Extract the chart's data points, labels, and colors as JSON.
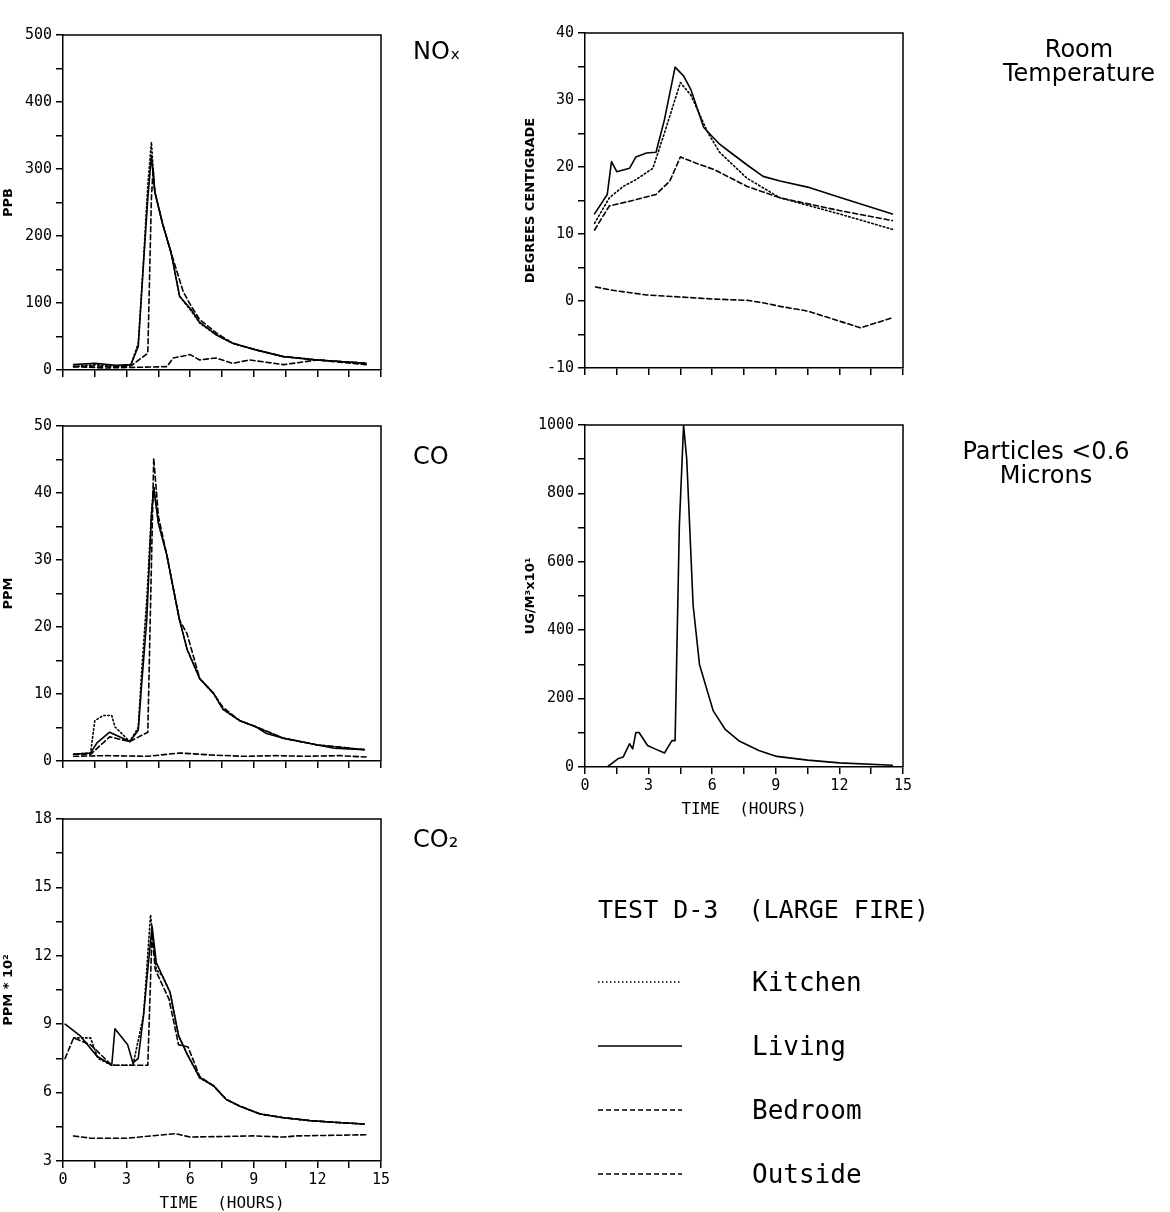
{
  "chart_data": [
    {
      "type": "line",
      "annotations": [
        "NOₓ"
      ],
      "ylabel": "PPB",
      "xlim": [
        0,
        15
      ],
      "xticks": [
        0,
        {
          "value": 1.5,
          "label": null
        },
        3,
        {
          "value": 4.5,
          "label": null
        },
        6,
        {
          "value": 7.5,
          "label": null
        },
        9,
        {
          "value": 10.5,
          "label": null
        },
        12,
        {
          "value": 13.5,
          "label": null
        },
        15
      ],
      "ylim": [
        0,
        500
      ],
      "yticks": [
        0,
        {
          "value": 50,
          "label": null
        },
        100,
        {
          "value": 150,
          "label": null
        },
        200,
        {
          "value": 250,
          "label": null
        },
        300,
        {
          "value": 350,
          "label": null
        },
        400,
        {
          "value": 450,
          "label": null
        },
        500
      ],
      "tick_labels": "y",
      "marker": "none",
      "legend": false,
      "series": [
        {
          "color": "#000000",
          "line_style": "dotted",
          "x": [
            0.5,
            1.5,
            2.5,
            3.2,
            3.55,
            3.8,
            4.0,
            4.17,
            4.33,
            4.7,
            5.1,
            5.5,
            6.05,
            6.45,
            7.25,
            8.0,
            9.1,
            10.4,
            12.0,
            14.3
          ],
          "values": [
            5,
            8,
            6,
            7,
            40,
            165,
            276,
            340,
            266,
            218,
            175,
            110,
            88,
            70,
            52,
            40,
            30,
            20,
            15,
            10
          ]
        },
        {
          "color": "#000000",
          "line_style": "solid",
          "x": [
            0.5,
            1.5,
            2.5,
            3.2,
            3.55,
            3.8,
            4.0,
            4.17,
            4.33,
            4.7,
            5.1,
            5.5,
            6.05,
            6.45,
            7.25,
            8.0,
            9.1,
            10.4,
            12.0,
            14.3
          ],
          "values": [
            8,
            10,
            7,
            8,
            35,
            160,
            256,
            320,
            266,
            218,
            175,
            110,
            90,
            71,
            52,
            40,
            30,
            20,
            15,
            10
          ]
        },
        {
          "color": "#000000",
          "line_style": "dashed",
          "x": [
            0.5,
            1.5,
            2.5,
            3.2,
            4.0,
            4.17,
            4.25,
            4.33,
            4.7,
            5.1,
            5.67,
            6.05,
            6.45,
            7.25,
            8.0,
            9.1,
            10.4,
            12.0,
            14.3
          ],
          "values": [
            5,
            6,
            5,
            6,
            25,
            256,
            300,
            266,
            218,
            175,
            117,
            95,
            75,
            55,
            40,
            30,
            20,
            15,
            10
          ]
        },
        {
          "color": "#000000",
          "line_style": "dashed",
          "x": [
            0.5,
            2,
            3.5,
            4.9,
            5.2,
            6.0,
            6.45,
            7.2,
            8.0,
            8.8,
            10.4,
            12.0,
            14.3
          ],
          "values": [
            5,
            3,
            4,
            5,
            18,
            23,
            15,
            18,
            10,
            15,
            8,
            15,
            8
          ]
        }
      ]
    },
    {
      "type": "line",
      "annotations": [
        "Room Temperature"
      ],
      "ylabel": "DEGREES CENTIGRADE",
      "xlim": [
        0,
        15
      ],
      "xticks": [
        0,
        {
          "value": 1.5,
          "label": null
        },
        3,
        {
          "value": 4.5,
          "label": null
        },
        6,
        {
          "value": 7.5,
          "label": null
        },
        9,
        {
          "value": 10.5,
          "label": null
        },
        12,
        {
          "value": 13.5,
          "label": null
        },
        15
      ],
      "ylim": [
        -10,
        40
      ],
      "yticks": [
        -10,
        {
          "value": -5,
          "label": null
        },
        0,
        {
          "value": 5,
          "label": null
        },
        10,
        {
          "value": 15,
          "label": null
        },
        20,
        {
          "value": 25,
          "label": null
        },
        30,
        {
          "value": 35,
          "label": null
        },
        40
      ],
      "tick_labels": "y",
      "marker": "none",
      "legend": false,
      "series": [
        {
          "color": "#000000",
          "line_style": "dotted",
          "x": [
            0.45,
            1.15,
            1.8,
            2.4,
            3.2,
            3.75,
            4.5,
            5.0,
            5.8,
            6.35,
            7.65,
            9.2,
            12.0,
            14.5
          ],
          "values": [
            11.6,
            15.4,
            17.1,
            18.1,
            19.8,
            25.1,
            32.6,
            30.7,
            25.1,
            22.2,
            18.3,
            15.4,
            13,
            10.7
          ]
        },
        {
          "color": "#000000",
          "line_style": "solid",
          "x": [
            0.45,
            1.05,
            1.25,
            1.5,
            2.1,
            2.4,
            2.9,
            3.35,
            3.75,
            4.25,
            4.65,
            5.0,
            5.6,
            6.35,
            6.85,
            7.65,
            8.4,
            9.2,
            10.5,
            12.0,
            14.5
          ],
          "values": [
            13,
            15.9,
            20.8,
            19.3,
            19.8,
            21.5,
            22.1,
            22.2,
            27.1,
            34.9,
            33.6,
            31.5,
            25.9,
            23.4,
            22.2,
            20.3,
            18.6,
            17.9,
            17,
            15.5,
            13
          ]
        },
        {
          "color": "#000000",
          "line_style": "dashed",
          "x": [
            0.45,
            1.15,
            2.25,
            3.35,
            4.0,
            4.5,
            5.3,
            6.1,
            7.65,
            9.2,
            12.0,
            14.5
          ],
          "values": [
            10.6,
            14.2,
            15,
            15.9,
            17.9,
            21.5,
            20.5,
            19.6,
            17.1,
            15.4,
            13.5,
            12
          ]
        },
        {
          "color": "#000000",
          "line_style": "dashed",
          "x": [
            0.5,
            1.3,
            2.9,
            4.5,
            6.0,
            7.65,
            8.45,
            9.2,
            10.5,
            12.0,
            13.0,
            14.5
          ],
          "values": [
            2.1,
            1.6,
            0.9,
            0.6,
            0.3,
            0.1,
            -0.3,
            -0.8,
            -1.5,
            -3,
            -4,
            -2.5
          ]
        }
      ]
    },
    {
      "type": "line",
      "annotations": [
        "CO"
      ],
      "ylabel": "PPM",
      "xlim": [
        0,
        15
      ],
      "xticks": [
        0,
        {
          "value": 1.5,
          "label": null
        },
        3,
        {
          "value": 4.5,
          "label": null
        },
        6,
        {
          "value": 7.5,
          "label": null
        },
        9,
        {
          "value": 10.5,
          "label": null
        },
        12,
        {
          "value": 13.5,
          "label": null
        },
        15
      ],
      "ylim": [
        0,
        50
      ],
      "yticks": [
        0,
        {
          "value": 5,
          "label": null
        },
        10,
        {
          "value": 15,
          "label": null
        },
        20,
        {
          "value": 25,
          "label": null
        },
        30,
        {
          "value": 35,
          "label": null
        },
        40,
        {
          "value": 45,
          "label": null
        },
        50
      ],
      "tick_labels": "y",
      "marker": "none",
      "legend": false,
      "series": [
        {
          "color": "#000000",
          "line_style": "dotted",
          "x": [
            0.5,
            1.3,
            1.5,
            1.9,
            2.3,
            2.45,
            3.15,
            3.55,
            3.7,
            3.95,
            4.17,
            4.28,
            4.5,
            4.9,
            5.2,
            5.5,
            5.85,
            6.45,
            7.1,
            7.55,
            8.35,
            9.1,
            10.4,
            12.0,
            14.2
          ],
          "values": [
            1,
            1.2,
            6,
            6.8,
            6.8,
            5.1,
            2.9,
            5,
            13,
            24,
            37,
            41,
            35.5,
            30.7,
            25.8,
            21,
            16.7,
            12.3,
            10.1,
            7.7,
            6,
            5.1,
            3.4,
            2.4,
            1.7
          ]
        },
        {
          "color": "#000000",
          "line_style": "solid",
          "x": [
            0.5,
            1.3,
            1.6,
            2.2,
            3.15,
            3.55,
            3.7,
            3.95,
            4.17,
            4.28,
            4.5,
            4.9,
            5.2,
            5.5,
            5.85,
            6.45,
            7.1,
            7.55,
            8.35,
            9.1,
            9.6,
            10.4,
            11.2,
            12.0,
            12.8,
            14.2
          ],
          "values": [
            1,
            1.2,
            2.7,
            4.3,
            2.9,
            4.6,
            11,
            21,
            36.5,
            40.8,
            35.5,
            30.7,
            25.8,
            21,
            16.7,
            12.3,
            10.1,
            7.7,
            6,
            5.1,
            4.1,
            3.4,
            2.9,
            2.4,
            1.9,
            1.7
          ]
        },
        {
          "color": "#000000",
          "line_style": "dashed",
          "x": [
            0.5,
            1.3,
            2.2,
            3.15,
            4.0,
            4.28,
            4.5,
            4.9,
            5.2,
            5.5,
            5.85,
            6.45,
            7.1,
            7.55,
            8.35,
            9.1,
            10.4,
            12.0,
            14.2
          ],
          "values": [
            1,
            1,
            3.6,
            2.9,
            4.3,
            45.2,
            36.5,
            30.7,
            25.8,
            21,
            19,
            12.3,
            10.1,
            8,
            6,
            5.1,
            3.4,
            2.4,
            1.7
          ]
        },
        {
          "color": "#000000",
          "line_style": "dashed",
          "x": [
            0.5,
            2,
            4,
            5.5,
            7,
            8.5,
            10,
            11.5,
            13,
            14.3
          ],
          "values": [
            0.7,
            0.8,
            0.7,
            1.2,
            0.9,
            0.7,
            0.8,
            0.7,
            0.8,
            0.6
          ]
        }
      ]
    },
    {
      "type": "line",
      "annotations": [
        "Particles <0.6 Microns"
      ],
      "xlabel": "TIME  (HOURS)",
      "ylabel": "UG/M³x10¹",
      "xlim": [
        0,
        15
      ],
      "xticks": [
        0,
        {
          "value": 1.5,
          "label": null
        },
        3,
        {
          "value": 4.5,
          "label": null
        },
        6,
        {
          "value": 7.5,
          "label": null
        },
        9,
        {
          "value": 10.5,
          "label": null
        },
        12,
        {
          "value": 13.5,
          "label": null
        },
        15
      ],
      "ylim": [
        0,
        1000
      ],
      "yticks": [
        0,
        {
          "value": 100,
          "label": null
        },
        200,
        {
          "value": 300,
          "label": null
        },
        400,
        {
          "value": 500,
          "label": null
        },
        600,
        {
          "value": 700,
          "label": null
        },
        800,
        {
          "value": 900,
          "label": null
        },
        1000
      ],
      "marker": "none",
      "legend": false,
      "series": [
        {
          "color": "#000000",
          "line_style": "solid",
          "x": [
            0,
            1.05,
            1.55,
            1.8,
            2.1,
            2.25,
            2.4,
            2.55,
            2.95,
            3.3,
            3.75,
            4.1,
            4.25,
            4.45,
            4.65,
            4.8,
            5.1,
            5.4,
            6.05,
            6.6,
            7.25,
            8.2,
            9.05,
            10.5,
            12,
            14.5
          ],
          "values": [
            0,
            0,
            24,
            29,
            68,
            53,
            101,
            101,
            63,
            53,
            41,
            77,
            77,
            705,
            1000,
            899,
            473,
            300,
            164,
            111,
            77,
            48,
            31,
            20,
            12,
            5
          ]
        }
      ]
    },
    {
      "type": "line",
      "annotations": [
        "CO₂"
      ],
      "xlabel": "TIME  (HOURS)",
      "ylabel": "PPM * 10²",
      "xlim": [
        0,
        15
      ],
      "xticks": [
        0,
        {
          "value": 1.5,
          "label": null
        },
        3,
        {
          "value": 4.5,
          "label": null
        },
        6,
        {
          "value": 7.5,
          "label": null
        },
        9,
        {
          "value": 10.5,
          "label": null
        },
        12,
        {
          "value": 13.5,
          "label": null
        },
        15
      ],
      "ylim": [
        3,
        18
      ],
      "yticks": [
        3,
        {
          "value": 4.5,
          "label": null
        },
        6,
        {
          "value": 7.5,
          "label": null
        },
        9,
        {
          "value": 10.5,
          "label": null
        },
        12,
        {
          "value": 13.5,
          "label": null
        },
        15,
        {
          "value": 16.5,
          "label": null
        },
        18
      ],
      "marker": "none",
      "legend": "right",
      "legend_title": "TEST D-3  (LARGE FIRE)",
      "series": [
        {
          "name": "Kitchen",
          "color": "#000000",
          "line_style": "dotted",
          "x": [
            0.5,
            1.3,
            1.65,
            2.3,
            3.3,
            3.8,
            4.13,
            4.4,
            4.7,
            5.05,
            5.45,
            5.85,
            6.45,
            7.1,
            7.7,
            8.35,
            9.3,
            10.4,
            11.65,
            12.75,
            14.2
          ],
          "values": [
            8.4,
            8.4,
            7.5,
            7.2,
            7.2,
            9.4,
            13.8,
            11.4,
            11.1,
            10.4,
            8.5,
            7.7,
            6.65,
            6.3,
            5.7,
            5.4,
            5.06,
            4.9,
            4.77,
            4.7,
            4.62
          ]
        },
        {
          "name": "Living",
          "color": "#000000",
          "line_style": "solid",
          "x": [
            0.1,
            0.8,
            1.6,
            2.3,
            2.45,
            3.05,
            3.3,
            3.55,
            3.8,
            4.0,
            4.2,
            4.4,
            4.7,
            5.05,
            5.45,
            5.85,
            6.45,
            7.1,
            7.7,
            8.35,
            9.3,
            10.4,
            11.65,
            12.75,
            14.2
          ],
          "values": [
            9,
            8.5,
            7.6,
            7.2,
            8.8,
            8.1,
            7.3,
            7.5,
            9.4,
            11.4,
            13.3,
            11.7,
            11.1,
            10.4,
            8.5,
            7.7,
            6.65,
            6.3,
            5.7,
            5.4,
            5.06,
            4.9,
            4.77,
            4.7,
            4.62
          ]
        },
        {
          "name": "Bedroom",
          "color": "#000000",
          "line_style": "dashed",
          "x": [
            0.1,
            0.5,
            1.3,
            2.3,
            3.3,
            4.0,
            4.2,
            4.35,
            5.0,
            5.45,
            5.9,
            6.45,
            7.1,
            7.7,
            8.35,
            9.3,
            10.4,
            11.65,
            12.75,
            14.2
          ],
          "values": [
            7.5,
            8.4,
            8.1,
            7.2,
            7.2,
            7.2,
            13,
            11.4,
            10.1,
            8.1,
            8,
            6.7,
            6.3,
            5.7,
            5.4,
            5.06,
            4.9,
            4.77,
            4.7,
            4.62
          ]
        },
        {
          "name": "Outside",
          "color": "#000000",
          "line_style": "dashed",
          "x": [
            0.5,
            1.3,
            3,
            5.3,
            6,
            9,
            10.4,
            11,
            14.3
          ],
          "values": [
            4.1,
            4,
            4,
            4.2,
            4.05,
            4.1,
            4.05,
            4.1,
            4.15
          ]
        }
      ]
    }
  ]
}
